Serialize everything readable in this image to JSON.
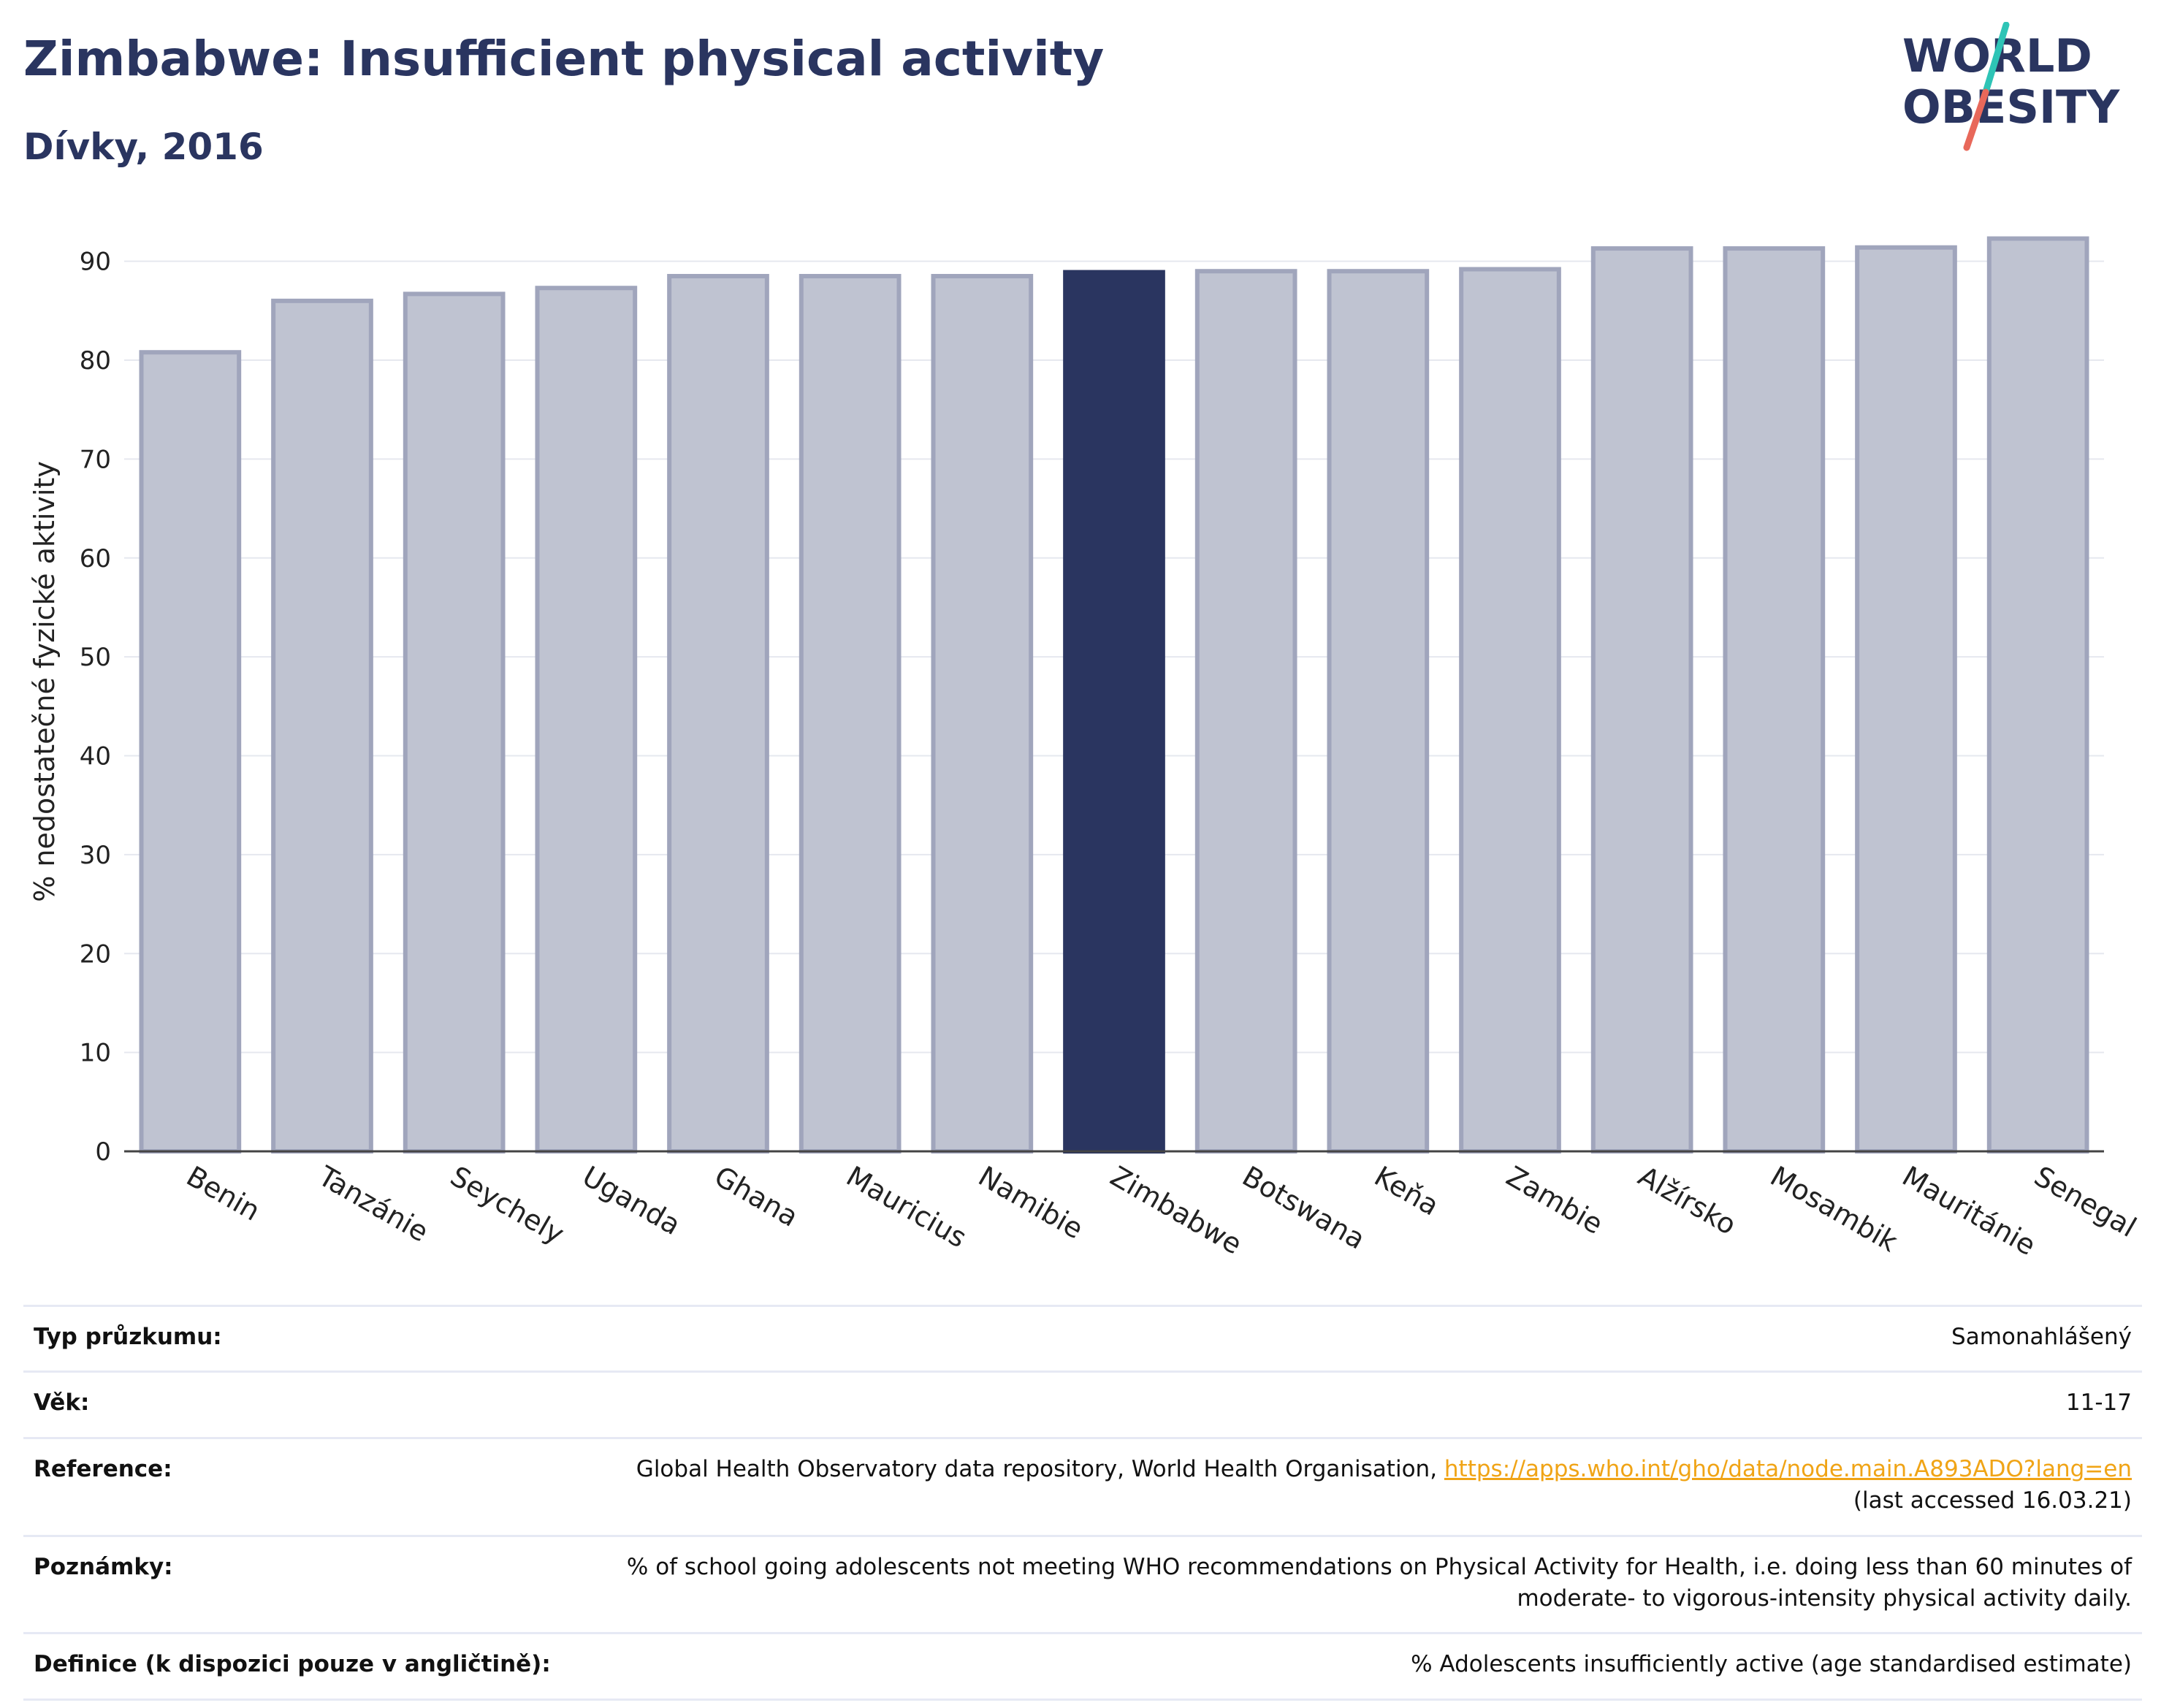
{
  "header": {
    "title": "Zimbabwe: Insufficient physical activity",
    "subtitle": "Dívky, 2016"
  },
  "logo": {
    "line1": "WORLD",
    "line2": "OBESITY"
  },
  "colors": {
    "highlight": "#2a3560",
    "bar_fill": "#bfc3d1",
    "bar_stroke": "#a0a5bc",
    "title": "#2a3560",
    "link": "#f0a416",
    "logo_teal": "#2ec4b6",
    "logo_red": "#e8685a"
  },
  "chart_data": {
    "type": "bar",
    "title": "Zimbabwe: Insufficient physical activity",
    "subtitle": "Dívky, 2016",
    "ylabel": "% nedostatečné fyzické aktivity",
    "xlabel": "",
    "ylim": [
      0,
      95
    ],
    "yticks": [
      0,
      10,
      20,
      30,
      40,
      50,
      60,
      70,
      80,
      90
    ],
    "grid": true,
    "highlight": "Zimbabwe",
    "categories": [
      "Benin",
      "Tanzánie",
      "Seychely",
      "Uganda",
      "Ghana",
      "Mauricius",
      "Namibie",
      "Zimbabwe",
      "Botswana",
      "Keňa",
      "Zambie",
      "Alžírsko",
      "Mosambik",
      "Mauritánie",
      "Senegal"
    ],
    "values": [
      80.8,
      86.0,
      86.7,
      87.3,
      88.5,
      88.5,
      88.5,
      88.9,
      89.0,
      89.0,
      89.2,
      91.3,
      91.3,
      91.4,
      92.3
    ]
  },
  "info": {
    "survey_label": "Typ průzkumu:",
    "survey_value": "Samonahlášený",
    "age_label": "Věk:",
    "age_value": "11-17",
    "ref_label": "Reference:",
    "ref_text": "Global Health Observatory data repository, World Health Organisation, ",
    "ref_link": "https://apps.who.int/gho/data/node.main.A893ADO?lang=en",
    "ref_accessed": "(last accessed 16.03.21)",
    "notes_label": "Poznámky:",
    "notes_value": "% of school going adolescents not meeting WHO recommendations on Physical Activity for Health, i.e. doing less than 60 minutes of moderate- to vigorous-intensity physical activity daily.",
    "def_label": "Definice (k dispozici pouze v angličtině):",
    "def_value": "% Adolescents insufficiently active (age standardised estimate)"
  }
}
